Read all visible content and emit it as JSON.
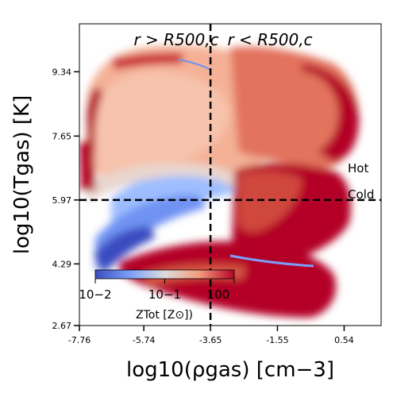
{
  "chart_data": {
    "type": "heatmap",
    "title": "",
    "xlabel": "log10(ρgas) [cm−3]",
    "ylabel": "log10(Tgas) [K]",
    "xlim": [
      -7.76,
      1.7
    ],
    "ylim": [
      2.67,
      10.6
    ],
    "x_ticks": [
      "-7.76",
      "-5.74",
      "-3.65",
      "-1.55",
      "0.54"
    ],
    "y_ticks": [
      "2.67",
      "4.29",
      "5.97",
      "7.65",
      "9.34"
    ],
    "x_tick_values": [
      -7.76,
      -5.74,
      -3.65,
      -1.55,
      0.54
    ],
    "y_tick_values": [
      2.67,
      4.29,
      5.97,
      7.65,
      9.34
    ],
    "vertical_divider_x": -3.65,
    "horizontal_divider_y": 5.97,
    "annotations": {
      "left_region": "r > R500,c",
      "right_region": "r < R500,c",
      "hot": "Hot",
      "cold": "Cold"
    },
    "colorbar": {
      "label": "ZTot [Z⊙])",
      "scale": "log",
      "range": [
        0.01,
        1
      ],
      "ticks": [
        "10−2",
        "10−1",
        "100"
      ],
      "colormap": "coolwarm"
    }
  }
}
